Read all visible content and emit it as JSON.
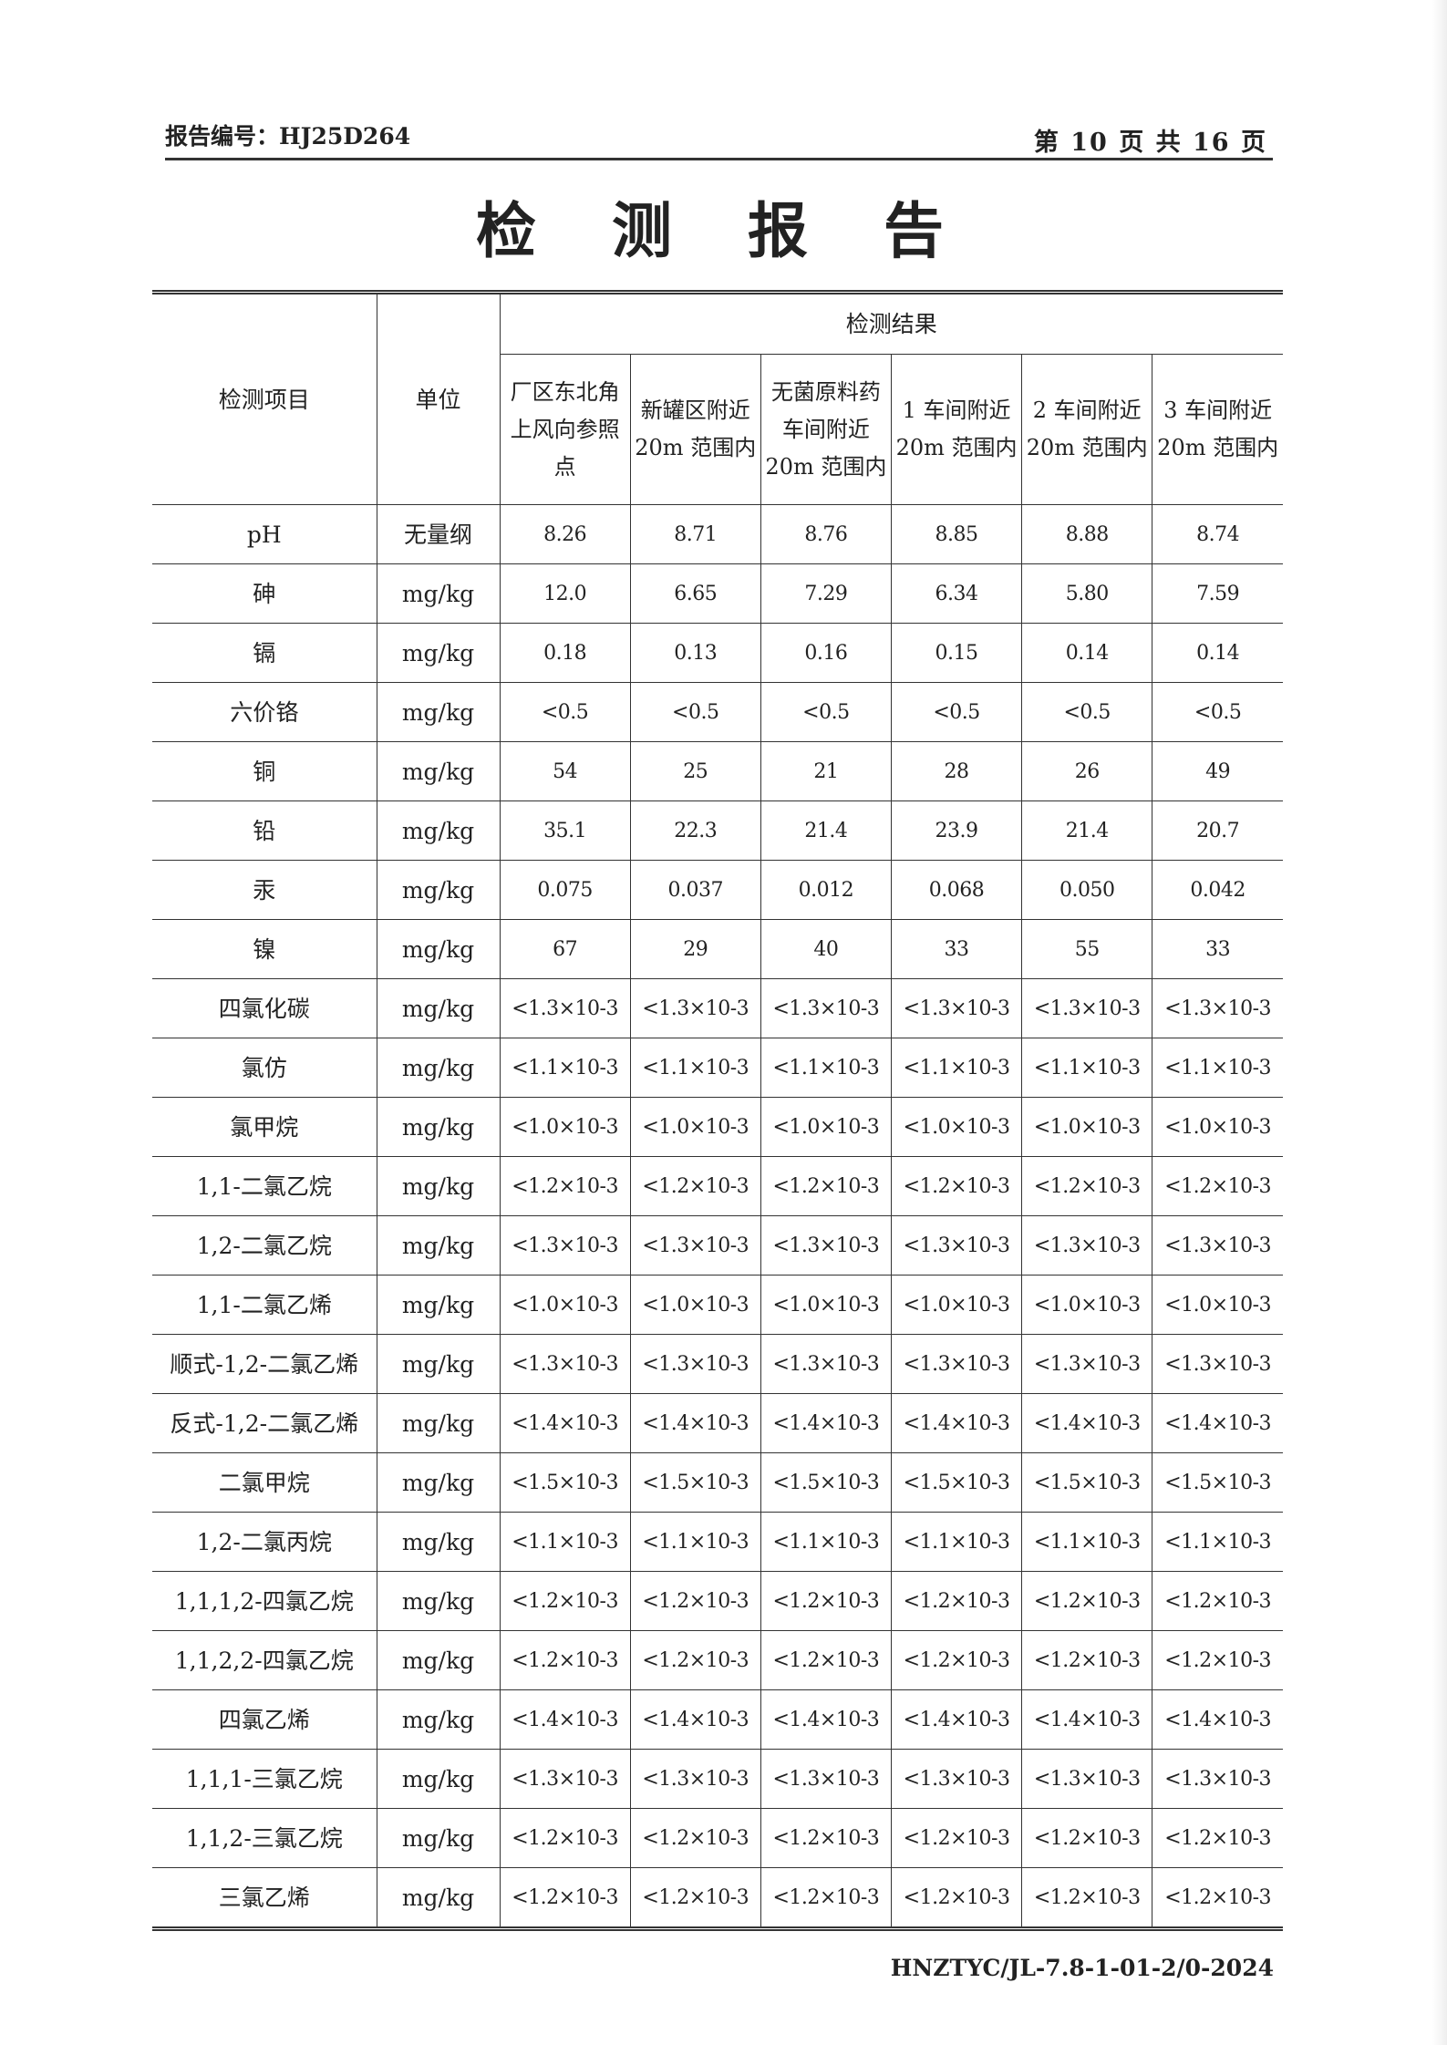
{
  "header": {
    "report_no": "报告编号：HJ25D264",
    "page": "第 10 页 共 16 页"
  },
  "title": "检 测 报 告",
  "table": {
    "col_item": "检测项目",
    "col_unit": "单位",
    "col_results": "检测结果",
    "sites": [
      "厂区东北角上风向参照点",
      "新罐区附近 20m 范围内",
      "无菌原料药车间附近 20m 范围内",
      "1 车间附近 20m 范围内",
      "2 车间附近 20m 范围内",
      "3 车间附近 20m 范围内"
    ],
    "rows": [
      {
        "item": "pH",
        "unit": "无量纲",
        "values": [
          "8.26",
          "8.71",
          "8.76",
          "8.85",
          "8.88",
          "8.74"
        ]
      },
      {
        "item": "砷",
        "unit": "mg/kg",
        "values": [
          "12.0",
          "6.65",
          "7.29",
          "6.34",
          "5.80",
          "7.59"
        ]
      },
      {
        "item": "镉",
        "unit": "mg/kg",
        "values": [
          "0.18",
          "0.13",
          "0.16",
          "0.15",
          "0.14",
          "0.14"
        ]
      },
      {
        "item": "六价铬",
        "unit": "mg/kg",
        "values": [
          "<0.5",
          "<0.5",
          "<0.5",
          "<0.5",
          "<0.5",
          "<0.5"
        ]
      },
      {
        "item": "铜",
        "unit": "mg/kg",
        "values": [
          "54",
          "25",
          "21",
          "28",
          "26",
          "49"
        ]
      },
      {
        "item": "铅",
        "unit": "mg/kg",
        "values": [
          "35.1",
          "22.3",
          "21.4",
          "23.9",
          "21.4",
          "20.7"
        ]
      },
      {
        "item": "汞",
        "unit": "mg/kg",
        "values": [
          "0.075",
          "0.037",
          "0.012",
          "0.068",
          "0.050",
          "0.042"
        ]
      },
      {
        "item": "镍",
        "unit": "mg/kg",
        "values": [
          "67",
          "29",
          "40",
          "33",
          "55",
          "33"
        ]
      },
      {
        "item": "四氯化碳",
        "unit": "mg/kg",
        "values": [
          "<1.3×10-3",
          "<1.3×10-3",
          "<1.3×10-3",
          "<1.3×10-3",
          "<1.3×10-3",
          "<1.3×10-3"
        ]
      },
      {
        "item": "氯仿",
        "unit": "mg/kg",
        "values": [
          "<1.1×10-3",
          "<1.1×10-3",
          "<1.1×10-3",
          "<1.1×10-3",
          "<1.1×10-3",
          "<1.1×10-3"
        ]
      },
      {
        "item": "氯甲烷",
        "unit": "mg/kg",
        "values": [
          "<1.0×10-3",
          "<1.0×10-3",
          "<1.0×10-3",
          "<1.0×10-3",
          "<1.0×10-3",
          "<1.0×10-3"
        ]
      },
      {
        "item": "1,1-二氯乙烷",
        "unit": "mg/kg",
        "values": [
          "<1.2×10-3",
          "<1.2×10-3",
          "<1.2×10-3",
          "<1.2×10-3",
          "<1.2×10-3",
          "<1.2×10-3"
        ]
      },
      {
        "item": "1,2-二氯乙烷",
        "unit": "mg/kg",
        "values": [
          "<1.3×10-3",
          "<1.3×10-3",
          "<1.3×10-3",
          "<1.3×10-3",
          "<1.3×10-3",
          "<1.3×10-3"
        ]
      },
      {
        "item": "1,1-二氯乙烯",
        "unit": "mg/kg",
        "values": [
          "<1.0×10-3",
          "<1.0×10-3",
          "<1.0×10-3",
          "<1.0×10-3",
          "<1.0×10-3",
          "<1.0×10-3"
        ]
      },
      {
        "item": "顺式-1,2-二氯乙烯",
        "unit": "mg/kg",
        "values": [
          "<1.3×10-3",
          "<1.3×10-3",
          "<1.3×10-3",
          "<1.3×10-3",
          "<1.3×10-3",
          "<1.3×10-3"
        ]
      },
      {
        "item": "反式-1,2-二氯乙烯",
        "unit": "mg/kg",
        "values": [
          "<1.4×10-3",
          "<1.4×10-3",
          "<1.4×10-3",
          "<1.4×10-3",
          "<1.4×10-3",
          "<1.4×10-3"
        ]
      },
      {
        "item": "二氯甲烷",
        "unit": "mg/kg",
        "values": [
          "<1.5×10-3",
          "<1.5×10-3",
          "<1.5×10-3",
          "<1.5×10-3",
          "<1.5×10-3",
          "<1.5×10-3"
        ]
      },
      {
        "item": "1,2-二氯丙烷",
        "unit": "mg/kg",
        "values": [
          "<1.1×10-3",
          "<1.1×10-3",
          "<1.1×10-3",
          "<1.1×10-3",
          "<1.1×10-3",
          "<1.1×10-3"
        ]
      },
      {
        "item": "1,1,1,2-四氯乙烷",
        "unit": "mg/kg",
        "values": [
          "<1.2×10-3",
          "<1.2×10-3",
          "<1.2×10-3",
          "<1.2×10-3",
          "<1.2×10-3",
          "<1.2×10-3"
        ]
      },
      {
        "item": "1,1,2,2-四氯乙烷",
        "unit": "mg/kg",
        "values": [
          "<1.2×10-3",
          "<1.2×10-3",
          "<1.2×10-3",
          "<1.2×10-3",
          "<1.2×10-3",
          "<1.2×10-3"
        ]
      },
      {
        "item": "四氯乙烯",
        "unit": "mg/kg",
        "values": [
          "<1.4×10-3",
          "<1.4×10-3",
          "<1.4×10-3",
          "<1.4×10-3",
          "<1.4×10-3",
          "<1.4×10-3"
        ]
      },
      {
        "item": "1,1,1-三氯乙烷",
        "unit": "mg/kg",
        "values": [
          "<1.3×10-3",
          "<1.3×10-3",
          "<1.3×10-3",
          "<1.3×10-3",
          "<1.3×10-3",
          "<1.3×10-3"
        ]
      },
      {
        "item": "1,1,2-三氯乙烷",
        "unit": "mg/kg",
        "values": [
          "<1.2×10-3",
          "<1.2×10-3",
          "<1.2×10-3",
          "<1.2×10-3",
          "<1.2×10-3",
          "<1.2×10-3"
        ]
      },
      {
        "item": "三氯乙烯",
        "unit": "mg/kg",
        "values": [
          "<1.2×10-3",
          "<1.2×10-3",
          "<1.2×10-3",
          "<1.2×10-3",
          "<1.2×10-3",
          "<1.2×10-3"
        ]
      }
    ]
  },
  "footer": {
    "form_code": "HNZTYC/JL-7.8-1-01-2/0-2024"
  }
}
